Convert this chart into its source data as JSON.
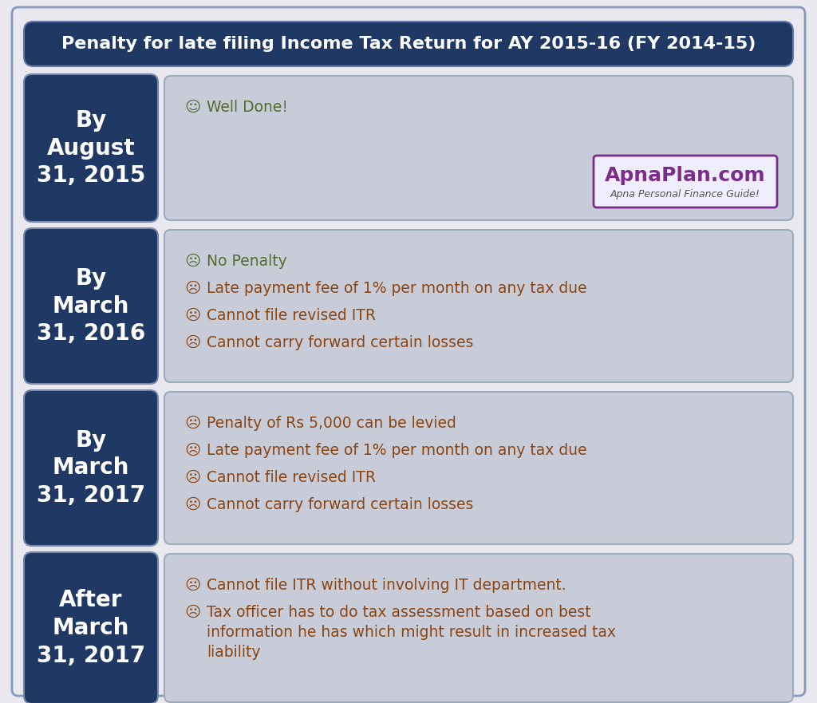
{
  "title": "Penalty for late filing Income Tax Return for AY 2015-16 (FY 2014-15)",
  "title_bg": "#1f3864",
  "title_color": "#ffffff",
  "bg_color": "#f0f0f0",
  "row_left_bg": "#1f3864",
  "row_right_bg": "#c8ccd8",
  "rows": [
    {
      "label": "By\nAugust\n31, 2015",
      "bullets": [
        {
          "icon": "☺",
          "text": "Well Done!",
          "icon_color": "#556b2f",
          "text_color": "#556b2f",
          "lines": 1
        }
      ],
      "has_logo": true
    },
    {
      "label": "By\nMarch\n31, 2016",
      "bullets": [
        {
          "icon": "☹",
          "text": "No Penalty",
          "icon_color": "#556b2f",
          "text_color": "#556b2f",
          "lines": 1
        },
        {
          "icon": "☹",
          "text": "Late payment fee of 1% per month on any tax due",
          "icon_color": "#8b4513",
          "text_color": "#8b4513",
          "lines": 1
        },
        {
          "icon": "☹",
          "text": "Cannot file revised ITR",
          "icon_color": "#8b4513",
          "text_color": "#8b4513",
          "lines": 1
        },
        {
          "icon": "☹",
          "text": "Cannot carry forward certain losses",
          "icon_color": "#8b4513",
          "text_color": "#8b4513",
          "lines": 1
        }
      ],
      "has_logo": false
    },
    {
      "label": "By\nMarch\n31, 2017",
      "bullets": [
        {
          "icon": "☹",
          "text": "Penalty of Rs 5,000 can be levied",
          "icon_color": "#8b4513",
          "text_color": "#8b4513",
          "lines": 1
        },
        {
          "icon": "☹",
          "text": "Late payment fee of 1% per month on any tax due",
          "icon_color": "#8b4513",
          "text_color": "#8b4513",
          "lines": 1
        },
        {
          "icon": "☹",
          "text": "Cannot file revised ITR",
          "icon_color": "#8b4513",
          "text_color": "#8b4513",
          "lines": 1
        },
        {
          "icon": "☹",
          "text": "Cannot carry forward certain losses",
          "icon_color": "#8b4513",
          "text_color": "#8b4513",
          "lines": 1
        }
      ],
      "has_logo": false
    },
    {
      "label": "After\nMarch\n31, 2017",
      "bullets": [
        {
          "icon": "☹",
          "text": "Cannot file ITR without involving IT department.",
          "icon_color": "#8b4513",
          "text_color": "#8b4513",
          "lines": 1
        },
        {
          "icon": "☹",
          "text": "Tax officer has to do tax assessment based on best\ninformation he has which might result in increased tax\nliability",
          "icon_color": "#8b4513",
          "text_color": "#8b4513",
          "lines": 3
        }
      ],
      "has_logo": false
    }
  ],
  "logo_text_main": "ApnaPlan.com",
  "logo_text_sub": "Apna Personal Finance Guide!",
  "logo_color_main": "#7b2d8b",
  "logo_color_sub": "#555555",
  "logo_border_color": "#7b2d8b",
  "logo_bg": "#eeeeff",
  "outer_border_color": "#8899bb",
  "outer_bg": "#e8e8ee"
}
